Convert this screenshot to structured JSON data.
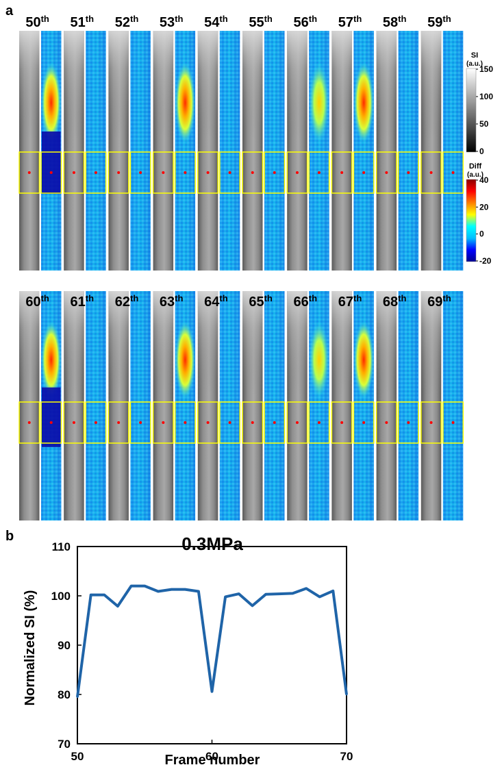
{
  "figure": {
    "panel_a_letter": "a",
    "panel_b_letter": "b"
  },
  "panel_a": {
    "frames_row1": [
      "50",
      "51",
      "52",
      "53",
      "54",
      "55",
      "56",
      "57",
      "58",
      "59"
    ],
    "frames_row2": [
      "60",
      "61",
      "62",
      "63",
      "64",
      "65",
      "66",
      "67",
      "68",
      "69"
    ],
    "suffix": "th",
    "colorbar_si": {
      "title": "SI",
      "unit": "(a.u.)",
      "ticks": [
        "150",
        "100",
        "50",
        "0"
      ],
      "colors": [
        "#ffffff",
        "#000000"
      ]
    },
    "colorbar_diff": {
      "title": "Diff",
      "unit": "(a.u.)",
      "ticks": [
        "40",
        "20",
        "0",
        "-20"
      ],
      "colors": [
        "#00008f",
        "#0000ff",
        "#00bfff",
        "#00ffff",
        "#ffff00",
        "#ff8000",
        "#ff0000",
        "#8b0000"
      ]
    },
    "roi_color": "#ffff00",
    "marker_color": "#ff0000"
  },
  "chart_data": {
    "type": "line",
    "title": "0.3MPa",
    "xlabel": "Frame number",
    "ylabel": "Normalized SI (%)",
    "xlim": [
      50,
      70
    ],
    "ylim": [
      70,
      110
    ],
    "xticks": [
      "50",
      "60",
      "70"
    ],
    "yticks": [
      "110",
      "100",
      "90",
      "80",
      "70"
    ],
    "line_color": "#1f64a8",
    "series": [
      {
        "name": "Normalized SI",
        "x": [
          50,
          51,
          52,
          53,
          54,
          55,
          56,
          57,
          58,
          59,
          60,
          61,
          62,
          63,
          64,
          65,
          66,
          67,
          68,
          69,
          70
        ],
        "values": [
          79.5,
          100.2,
          100.2,
          97.9,
          102.0,
          102.0,
          100.9,
          101.3,
          101.3,
          100.9,
          80.6,
          99.8,
          100.4,
          98.0,
          100.3,
          100.4,
          100.5,
          101.5,
          99.8,
          101.0,
          80.0
        ]
      }
    ]
  }
}
